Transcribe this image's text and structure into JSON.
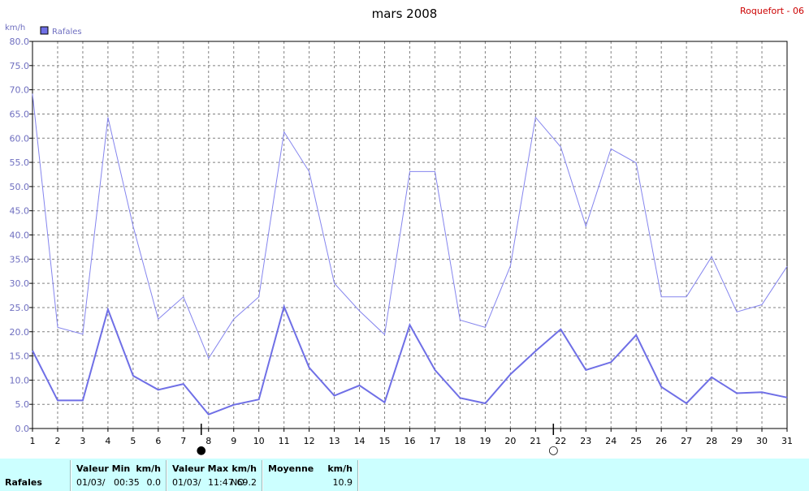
{
  "chart_data": {
    "type": "line",
    "title": "mars 2008",
    "station": "Roquefort - 06",
    "unit_label": "km/h",
    "legend": [
      {
        "name": "Rafales",
        "color": "#6f6fe6"
      }
    ],
    "legend_placement": "top-left",
    "grid": true,
    "ylim": [
      0,
      80
    ],
    "y_ticks": [
      "0.0",
      "5.0",
      "10.0",
      "15.0",
      "20.0",
      "25.0",
      "30.0",
      "35.0",
      "40.0",
      "45.0",
      "50.0",
      "55.0",
      "60.0",
      "65.0",
      "70.0",
      "75.0",
      "80.0"
    ],
    "x": [
      1,
      2,
      3,
      4,
      5,
      6,
      7,
      8,
      9,
      10,
      11,
      12,
      13,
      14,
      15,
      16,
      17,
      18,
      19,
      20,
      21,
      22,
      23,
      24,
      25,
      26,
      27,
      28,
      29,
      30,
      31
    ],
    "series": [
      {
        "name": "Rafales",
        "color": "#6f6fe6",
        "values": [
          16.1,
          5.8,
          5.8,
          24.6,
          10.9,
          8.0,
          9.2,
          2.9,
          4.9,
          6.0,
          25.2,
          12.6,
          6.8,
          8.9,
          5.4,
          21.4,
          12.1,
          6.3,
          5.2,
          11.2,
          16.0,
          20.5,
          12.1,
          13.7,
          19.3,
          8.6,
          5.2,
          10.6,
          7.3,
          7.5,
          6.4
        ]
      },
      {
        "color": "#8585ee",
        "values": [
          69.2,
          20.9,
          19.5,
          64.3,
          41.8,
          22.6,
          27.2,
          14.5,
          22.6,
          27.2,
          61.3,
          53.1,
          30.0,
          24.3,
          19.4,
          53.1,
          53.1,
          22.4,
          20.9,
          33.6,
          64.3,
          58.2,
          41.8,
          57.8,
          54.9,
          27.2,
          27.2,
          35.5,
          24.1,
          25.6,
          33.5
        ]
      }
    ],
    "moon_markers": [
      {
        "day": 8,
        "symbol": "●"
      },
      {
        "day": 22,
        "symbol": "○"
      }
    ]
  },
  "footer": {
    "series_label": "Rafales",
    "min": {
      "header": "Valeur Min",
      "unit": "km/h",
      "date": "01/03/",
      "time": "00:35",
      "value": "0.0"
    },
    "max": {
      "header": "Valeur Max",
      "unit": "km/h",
      "date": "01/03/",
      "time": "11:47",
      "dir": "NO",
      "value": "69.2"
    },
    "avg": {
      "header": "Moyenne",
      "unit": "km/h",
      "value": "10.9"
    }
  }
}
